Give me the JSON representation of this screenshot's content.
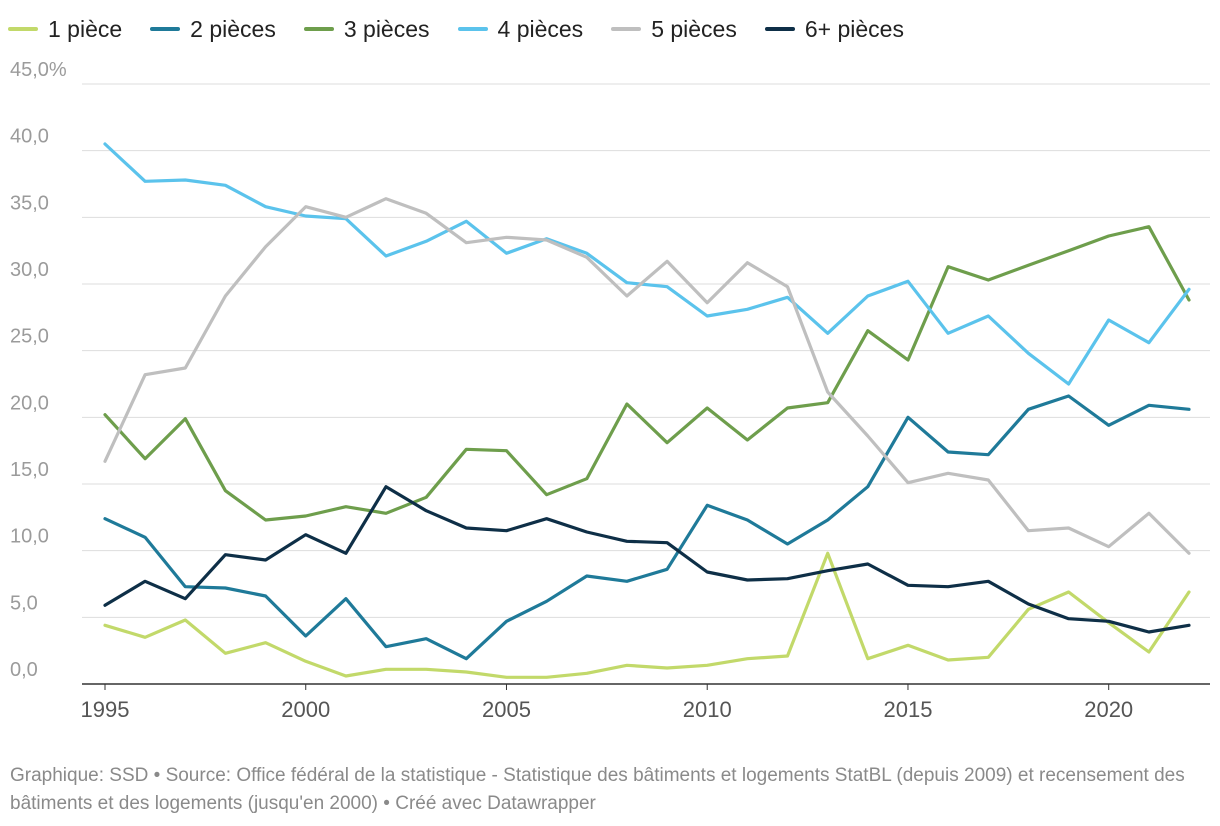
{
  "chart_data": {
    "type": "line",
    "title": "",
    "xlabel": "",
    "ylabel": "",
    "x": [
      1995,
      1996,
      1997,
      1998,
      1999,
      2000,
      2001,
      2002,
      2003,
      2004,
      2005,
      2006,
      2007,
      2008,
      2009,
      2010,
      2011,
      2012,
      2013,
      2014,
      2015,
      2016,
      2017,
      2018,
      2019,
      2020,
      2021,
      2022
    ],
    "xticks": [
      1995,
      2000,
      2005,
      2010,
      2015,
      2020
    ],
    "xlim": [
      1995,
      2022
    ],
    "ylim": [
      0,
      45
    ],
    "yticks": [
      {
        "value": 45,
        "label": "45,0%"
      },
      {
        "value": 40,
        "label": "40,0"
      },
      {
        "value": 35,
        "label": "35,0"
      },
      {
        "value": 30,
        "label": "30,0"
      },
      {
        "value": 25,
        "label": "25,0"
      },
      {
        "value": 20,
        "label": "20,0"
      },
      {
        "value": 15,
        "label": "15,0"
      },
      {
        "value": 10,
        "label": "10,0"
      },
      {
        "value": 5,
        "label": "5,0"
      },
      {
        "value": 0,
        "label": "0,0"
      }
    ],
    "grid": true,
    "legend_position": "top-left",
    "series": [
      {
        "name": "1 pièce",
        "color": "#c2d96a",
        "values": [
          4.4,
          3.5,
          4.8,
          2.3,
          3.1,
          1.7,
          0.6,
          1.1,
          1.1,
          0.9,
          0.5,
          0.5,
          0.8,
          1.4,
          1.2,
          1.4,
          1.9,
          2.1,
          9.8,
          1.9,
          2.9,
          1.8,
          2.0,
          5.6,
          6.9,
          4.6,
          2.4,
          6.9
        ]
      },
      {
        "name": "2 pièces",
        "color": "#1f7a99",
        "values": [
          12.4,
          11.0,
          7.3,
          7.2,
          6.6,
          3.6,
          6.4,
          2.8,
          3.4,
          1.9,
          4.7,
          6.2,
          8.1,
          7.7,
          8.6,
          13.4,
          12.3,
          10.5,
          12.3,
          14.8,
          20.0,
          17.4,
          17.2,
          20.6,
          21.6,
          19.4,
          20.9,
          20.6
        ]
      },
      {
        "name": "3 pièces",
        "color": "#6e9e4c",
        "values": [
          20.2,
          16.9,
          19.9,
          14.5,
          12.3,
          12.6,
          13.3,
          12.8,
          14.0,
          17.6,
          17.5,
          14.2,
          15.4,
          21.0,
          18.1,
          20.7,
          18.3,
          20.7,
          21.1,
          26.5,
          24.3,
          31.3,
          30.3,
          31.4,
          32.5,
          33.6,
          34.3,
          28.8
        ]
      },
      {
        "name": "4 pièces",
        "color": "#5bc3ec",
        "values": [
          40.5,
          37.7,
          37.8,
          37.4,
          35.8,
          35.1,
          34.9,
          32.1,
          33.2,
          34.7,
          32.3,
          33.4,
          32.3,
          30.1,
          29.8,
          27.6,
          28.1,
          29.0,
          26.3,
          29.1,
          30.2,
          26.3,
          27.6,
          24.8,
          22.5,
          27.3,
          25.6,
          29.6
        ]
      },
      {
        "name": "5 pièces",
        "color": "#bfbfbf",
        "values": [
          16.7,
          23.2,
          23.7,
          29.1,
          32.8,
          35.8,
          35.0,
          36.4,
          35.3,
          33.1,
          33.5,
          33.3,
          32.0,
          29.1,
          31.7,
          28.6,
          31.6,
          29.8,
          21.9,
          18.6,
          15.1,
          15.8,
          15.3,
          11.5,
          11.7,
          10.3,
          12.8,
          9.8
        ]
      },
      {
        "name": "6+ pièces",
        "color": "#0e2f47",
        "values": [
          5.9,
          7.7,
          6.4,
          9.7,
          9.3,
          11.2,
          9.8,
          14.8,
          13.0,
          11.7,
          11.5,
          12.4,
          11.4,
          10.7,
          10.6,
          8.4,
          7.8,
          7.9,
          8.5,
          9.0,
          7.4,
          7.3,
          7.7,
          6.0,
          4.9,
          4.7,
          3.9,
          4.4
        ]
      }
    ]
  },
  "footer": {
    "credit": "Graphique: SSD • Source: Office fédéral de la statistique - Statistique des bâtiments et logements StatBL (depuis 2009) et recensement des bâtiments et des logements (jusqu'en 2000) • Créé avec Datawrapper"
  }
}
